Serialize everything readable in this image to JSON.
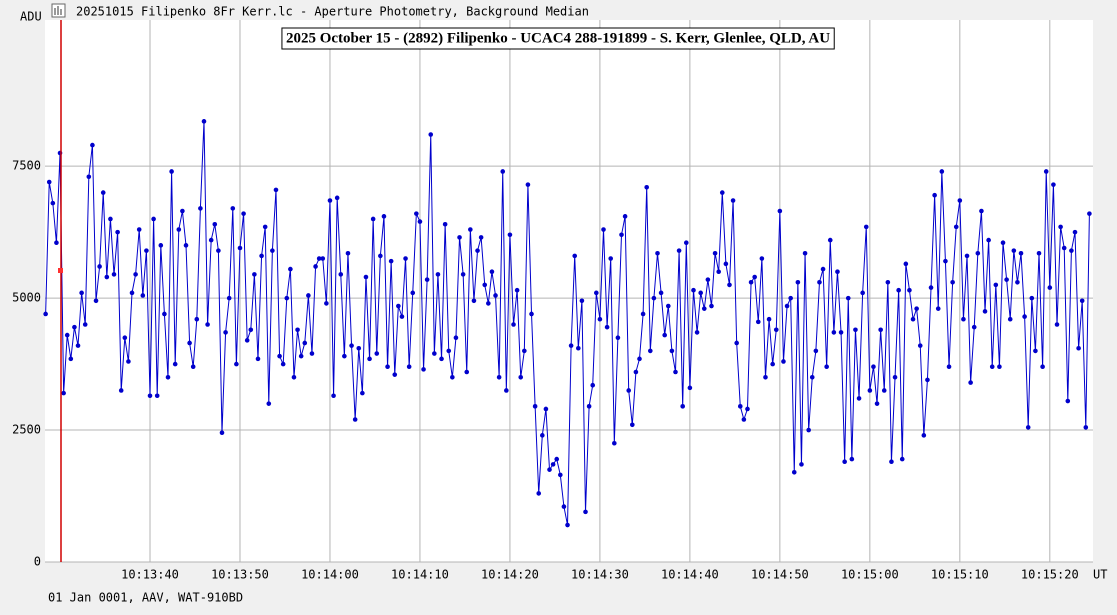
{
  "window": {
    "title": "20251015 Filipenko 8Fr Kerr.lc - Aperture Photometry, Background Median"
  },
  "chart_data": {
    "type": "line",
    "title": "2025 October 15 - (2892) Filipenko - UCAC4 288-191899 - S. Kerr, Glenlee, QLD, AU",
    "y_label": "ADU",
    "x_label": "UT",
    "footnote": "01 Jan 0001, AAV, WAT-910BD",
    "color": "#0000cc",
    "grid": true,
    "ylim": [
      0,
      10270
    ],
    "yticks": [
      0,
      2500,
      5000,
      7500
    ],
    "xlim": [
      36808.33,
      36924.8
    ],
    "xticks": [
      {
        "value": 36820,
        "label": "10:13:40"
      },
      {
        "value": 36830,
        "label": "10:13:50"
      },
      {
        "value": 36840,
        "label": "10:14:00"
      },
      {
        "value": 36850,
        "label": "10:14:10"
      },
      {
        "value": 36860,
        "label": "10:14:20"
      },
      {
        "value": 36870,
        "label": "10:14:30"
      },
      {
        "value": 36880,
        "label": "10:14:40"
      },
      {
        "value": 36890,
        "label": "10:14:50"
      },
      {
        "value": 36900,
        "label": "10:15:00"
      },
      {
        "value": 36910,
        "label": "10:15:10"
      },
      {
        "value": 36920,
        "label": "10:15:20"
      }
    ],
    "x": [
      36808.4,
      36808.8,
      36809.2,
      36809.6,
      36810,
      36810.4,
      36810.8,
      36811.2,
      36811.6,
      36812,
      36812.4,
      36812.8,
      36813.2,
      36813.6,
      36814,
      36814.4,
      36814.8,
      36815.2,
      36815.6,
      36816,
      36816.4,
      36816.8,
      36817.2,
      36817.6,
      36818,
      36818.4,
      36818.8,
      36819.2,
      36819.6,
      36820,
      36820.4,
      36820.8,
      36821.2,
      36821.6,
      36822,
      36822.4,
      36822.8,
      36823.2,
      36823.6,
      36824,
      36824.4,
      36824.8,
      36825.2,
      36825.6,
      36826,
      36826.4,
      36826.8,
      36827.2,
      36827.6,
      36828,
      36828.4,
      36828.8,
      36829.2,
      36829.6,
      36830,
      36830.4,
      36830.8,
      36831.2,
      36831.6,
      36832,
      36832.4,
      36832.8,
      36833.2,
      36833.6,
      36834,
      36834.4,
      36834.8,
      36835.2,
      36835.6,
      36836,
      36836.4,
      36836.8,
      36837.2,
      36837.6,
      36838,
      36838.4,
      36838.8,
      36839.2,
      36839.6,
      36840,
      36840.4,
      36840.8,
      36841.2,
      36841.6,
      36842,
      36842.4,
      36842.8,
      36843.2,
      36843.6,
      36844,
      36844.4,
      36844.8,
      36845.2,
      36845.6,
      36846,
      36846.4,
      36846.8,
      36847.2,
      36847.6,
      36848,
      36848.4,
      36848.8,
      36849.2,
      36849.6,
      36850,
      36850.4,
      36850.8,
      36851.2,
      36851.6,
      36852,
      36852.4,
      36852.8,
      36853.2,
      36853.6,
      36854,
      36854.4,
      36854.8,
      36855.2,
      36855.6,
      36856,
      36856.4,
      36856.8,
      36857.2,
      36857.6,
      36858,
      36858.4,
      36858.8,
      36859.2,
      36859.6,
      36860,
      36860.4,
      36860.8,
      36861.2,
      36861.6,
      36862,
      36862.4,
      36862.8,
      36863.2,
      36863.6,
      36864,
      36864.4,
      36864.8,
      36865.2,
      36865.6,
      36866,
      36866.4,
      36866.8,
      36867.2,
      36867.6,
      36868,
      36868.4,
      36868.8,
      36869.2,
      36869.6,
      36870,
      36870.4,
      36870.8,
      36871.2,
      36871.6,
      36872,
      36872.4,
      36872.8,
      36873.2,
      36873.6,
      36874,
      36874.4,
      36874.8,
      36875.2,
      36875.6,
      36876,
      36876.4,
      36876.8,
      36877.2,
      36877.6,
      36878,
      36878.4,
      36878.8,
      36879.2,
      36879.6,
      36880,
      36880.4,
      36880.8,
      36881.2,
      36881.6,
      36882,
      36882.4,
      36882.8,
      36883.2,
      36883.6,
      36884,
      36884.4,
      36884.8,
      36885.2,
      36885.6,
      36886,
      36886.4,
      36886.8,
      36887.2,
      36887.6,
      36888,
      36888.4,
      36888.8,
      36889.2,
      36889.6,
      36890,
      36890.4,
      36890.8,
      36891.2,
      36891.6,
      36892,
      36892.4,
      36892.8,
      36893.2,
      36893.6,
      36894,
      36894.4,
      36894.8,
      36895.2,
      36895.6,
      36896,
      36896.4,
      36896.8,
      36897.2,
      36897.6,
      36898,
      36898.4,
      36898.8,
      36899.2,
      36899.6,
      36900,
      36900.4,
      36900.8,
      36901.2,
      36901.6,
      36902,
      36902.4,
      36902.8,
      36903.2,
      36903.6,
      36904,
      36904.4,
      36904.8,
      36905.2,
      36905.6,
      36906,
      36906.4,
      36906.8,
      36907.2,
      36907.6,
      36908,
      36908.4,
      36908.8,
      36909.2,
      36909.6,
      36910,
      36910.4,
      36910.8,
      36911.2,
      36911.6,
      36912,
      36912.4,
      36912.8,
      36913.2,
      36913.6,
      36914,
      36914.4,
      36914.8,
      36915.2,
      36915.6,
      36916,
      36916.4,
      36916.8,
      36917.2,
      36917.6,
      36918,
      36918.4,
      36918.8,
      36919.2,
      36919.6,
      36920,
      36920.4,
      36920.8,
      36921.2,
      36921.6,
      36922,
      36922.4,
      36922.8,
      36923.2,
      36923.6,
      36924,
      36924.4
    ],
    "values": [
      4700,
      7200,
      6800,
      6050,
      7750,
      3200,
      4300,
      3850,
      4450,
      4100,
      5100,
      4500,
      7300,
      7900,
      4950,
      5600,
      7000,
      5400,
      6500,
      5450,
      6250,
      3250,
      4250,
      3800,
      5100,
      5450,
      6300,
      5050,
      5900,
      3150,
      6500,
      3150,
      6000,
      4700,
      3500,
      7400,
      3750,
      6300,
      6650,
      6000,
      4150,
      3700,
      4600,
      6700,
      8350,
      4500,
      6100,
      6400,
      5900,
      2450,
      4350,
      5000,
      6700,
      3750,
      5950,
      6600,
      4200,
      4400,
      5450,
      3850,
      5800,
      6350,
      3000,
      5900,
      7050,
      3900,
      3750,
      5000,
      5550,
      3500,
      4400,
      3900,
      4150,
      5050,
      3950,
      5600,
      5750,
      5750,
      4900,
      6850,
      3150,
      6900,
      5450,
      3900,
      5850,
      4100,
      2700,
      4050,
      3200,
      5400,
      3850,
      6500,
      3950,
      5800,
      6550,
      3700,
      5700,
      3550,
      4850,
      4650,
      5750,
      3700,
      5100,
      6600,
      6450,
      3650,
      5350,
      8100,
      3950,
      5450,
      3850,
      6400,
      4000,
      3500,
      4250,
      6150,
      5450,
      3600,
      6300,
      4950,
      5900,
      6150,
      5250,
      4900,
      5500,
      5050,
      3500,
      7400,
      3250,
      6200,
      4500,
      5150,
      3500,
      4000,
      7150,
      4700,
      2950,
      1300,
      2400,
      2900,
      1750,
      1850,
      1950,
      1650,
      1050,
      700,
      4100,
      5800,
      4050,
      4950,
      950,
      2950,
      3350,
      5100,
      4600,
      6300,
      4450,
      5750,
      2250,
      4250,
      6200,
      6550,
      3250,
      2600,
      3600,
      3850,
      4700,
      7100,
      4000,
      5000,
      5850,
      5100,
      4300,
      4850,
      4000,
      3600,
      5900,
      2950,
      6050,
      3300,
      5150,
      4350,
      5100,
      4800,
      5350,
      4850,
      5850,
      5500,
      7000,
      5650,
      5250,
      6850,
      4150,
      2950,
      2700,
      2900,
      5300,
      5400,
      4550,
      5750,
      3500,
      4600,
      3750,
      4400,
      6650,
      3800,
      4850,
      5000,
      1700,
      5300,
      1850,
      5850,
      2500,
      3500,
      4000,
      5300,
      5550,
      3700,
      6100,
      4350,
      5500,
      4350,
      1900,
      5000,
      1950,
      4400,
      3100,
      5100,
      6350,
      3250,
      3700,
      3000,
      4400,
      3250,
      5300,
      1900,
      3500,
      5150,
      1950,
      5650,
      5150,
      4600,
      4800,
      4100,
      2400,
      3450,
      5200,
      6950,
      4800,
      7400,
      5700,
      3700,
      5300,
      6350,
      6850,
      4600,
      5800,
      3400,
      4450,
      5850,
      6650,
      4750,
      6100,
      3700,
      5250,
      3700,
      6050,
      5350,
      4600,
      5900,
      5300,
      5850,
      4650,
      2550,
      5000,
      4000,
      5850,
      3700,
      7400,
      5200,
      7150,
      4500,
      6350,
      5950,
      3050,
      5900,
      6250,
      4050,
      4950,
      2550,
      6600
    ]
  }
}
